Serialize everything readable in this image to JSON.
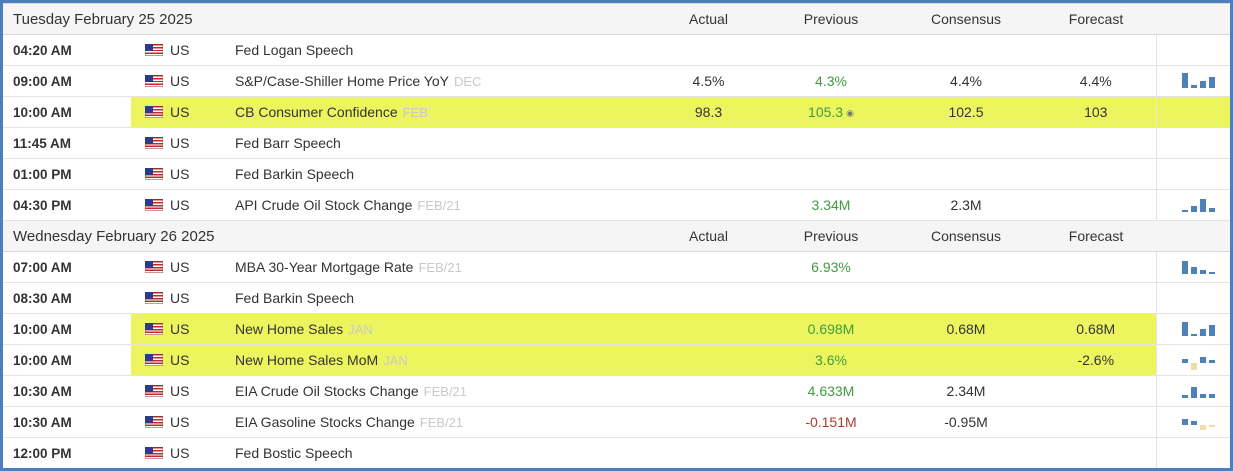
{
  "columns": {
    "actual": "Actual",
    "previous": "Previous",
    "consensus": "Consensus",
    "forecast": "Forecast"
  },
  "colors": {
    "border_blue": "#4d7ebe",
    "highlight_yellow": "#edf55e",
    "previous_green": "#3e9c3f",
    "previous_red": "#ad3a30",
    "spark_blue": "#4e81b8",
    "spark_tan": "#eeddab",
    "header_bg": "#f5f5f5"
  },
  "icons": {
    "revised_marker": "◉",
    "mini_chart": "mini-bar-chart-icon",
    "flag": "us-flag-icon"
  },
  "sections": [
    {
      "date": "Tuesday February 25 2025",
      "rows": [
        {
          "time": "04:20 AM",
          "country": "US",
          "event": "Fed Logan Speech",
          "ref": "",
          "actual": "",
          "previous": "",
          "previous_color": "",
          "revised": false,
          "consensus": "",
          "forecast": "",
          "highlight": "",
          "spark": null
        },
        {
          "time": "09:00 AM",
          "country": "US",
          "event": "S&P/Case-Shiller Home Price YoY",
          "ref": "DEC",
          "actual": "4.5%",
          "previous": "4.3%",
          "previous_color": "green",
          "revised": false,
          "consensus": "4.4%",
          "forecast": "4.4%",
          "highlight": "",
          "spark": [
            15,
            3,
            7,
            11
          ]
        },
        {
          "time": "10:00 AM",
          "country": "US",
          "event": "CB Consumer Confidence",
          "ref": "FEB",
          "actual": "98.3",
          "previous": "105.3",
          "previous_color": "green",
          "revised": true,
          "consensus": "102.5",
          "forecast": "103",
          "highlight": "full",
          "spark": null
        },
        {
          "time": "11:45 AM",
          "country": "US",
          "event": "Fed Barr Speech",
          "ref": "",
          "actual": "",
          "previous": "",
          "previous_color": "",
          "revised": false,
          "consensus": "",
          "forecast": "",
          "highlight": "",
          "spark": null
        },
        {
          "time": "01:00 PM",
          "country": "US",
          "event": "Fed Barkin Speech",
          "ref": "",
          "actual": "",
          "previous": "",
          "previous_color": "",
          "revised": false,
          "consensus": "",
          "forecast": "",
          "highlight": "",
          "spark": null
        },
        {
          "time": "04:30 PM",
          "country": "US",
          "event": "API Crude Oil Stock Change",
          "ref": "FEB/21",
          "actual": "",
          "previous": "3.34M",
          "previous_color": "green",
          "revised": false,
          "consensus": "2.3M",
          "forecast": "",
          "highlight": "",
          "spark": [
            2,
            6,
            13,
            4
          ]
        }
      ]
    },
    {
      "date": "Wednesday February 26 2025",
      "rows": [
        {
          "time": "07:00 AM",
          "country": "US",
          "event": "MBA 30-Year Mortgage Rate",
          "ref": "FEB/21",
          "actual": "",
          "previous": "6.93%",
          "previous_color": "green",
          "revised": false,
          "consensus": "",
          "forecast": "",
          "highlight": "",
          "spark": [
            13,
            7,
            4,
            2
          ]
        },
        {
          "time": "08:30 AM",
          "country": "US",
          "event": "Fed Barkin Speech",
          "ref": "",
          "actual": "",
          "previous": "",
          "previous_color": "",
          "revised": false,
          "consensus": "",
          "forecast": "",
          "highlight": "",
          "spark": null
        },
        {
          "time": "10:00 AM",
          "country": "US",
          "event": "New Home Sales",
          "ref": "JAN",
          "actual": "",
          "previous": "0.698M",
          "previous_color": "green",
          "revised": false,
          "consensus": "0.68M",
          "forecast": "0.68M",
          "highlight": "partial",
          "spark": [
            14,
            2,
            7,
            11
          ]
        },
        {
          "time": "10:00 AM",
          "country": "US",
          "event": "New Home Sales MoM",
          "ref": "JAN",
          "actual": "",
          "previous": "3.6%",
          "previous_color": "green",
          "revised": false,
          "consensus": "",
          "forecast": "-2.6%",
          "highlight": "partial",
          "spark": [
            4,
            -7,
            6,
            3
          ]
        },
        {
          "time": "10:30 AM",
          "country": "US",
          "event": "EIA Crude Oil Stocks Change",
          "ref": "FEB/21",
          "actual": "",
          "previous": "4.633M",
          "previous_color": "green",
          "revised": false,
          "consensus": "2.34M",
          "forecast": "",
          "highlight": "",
          "spark": [
            3,
            11,
            4,
            4
          ]
        },
        {
          "time": "10:30 AM",
          "country": "US",
          "event": "EIA Gasoline Stocks Change",
          "ref": "FEB/21",
          "actual": "",
          "previous": "-0.151M",
          "previous_color": "red",
          "revised": false,
          "consensus": "-0.95M",
          "forecast": "",
          "highlight": "",
          "spark": [
            6,
            4,
            -5,
            -2
          ]
        },
        {
          "time": "12:00 PM",
          "country": "US",
          "event": "Fed Bostic Speech",
          "ref": "",
          "actual": "",
          "previous": "",
          "previous_color": "",
          "revised": false,
          "consensus": "",
          "forecast": "",
          "highlight": "",
          "spark": null
        }
      ]
    }
  ]
}
